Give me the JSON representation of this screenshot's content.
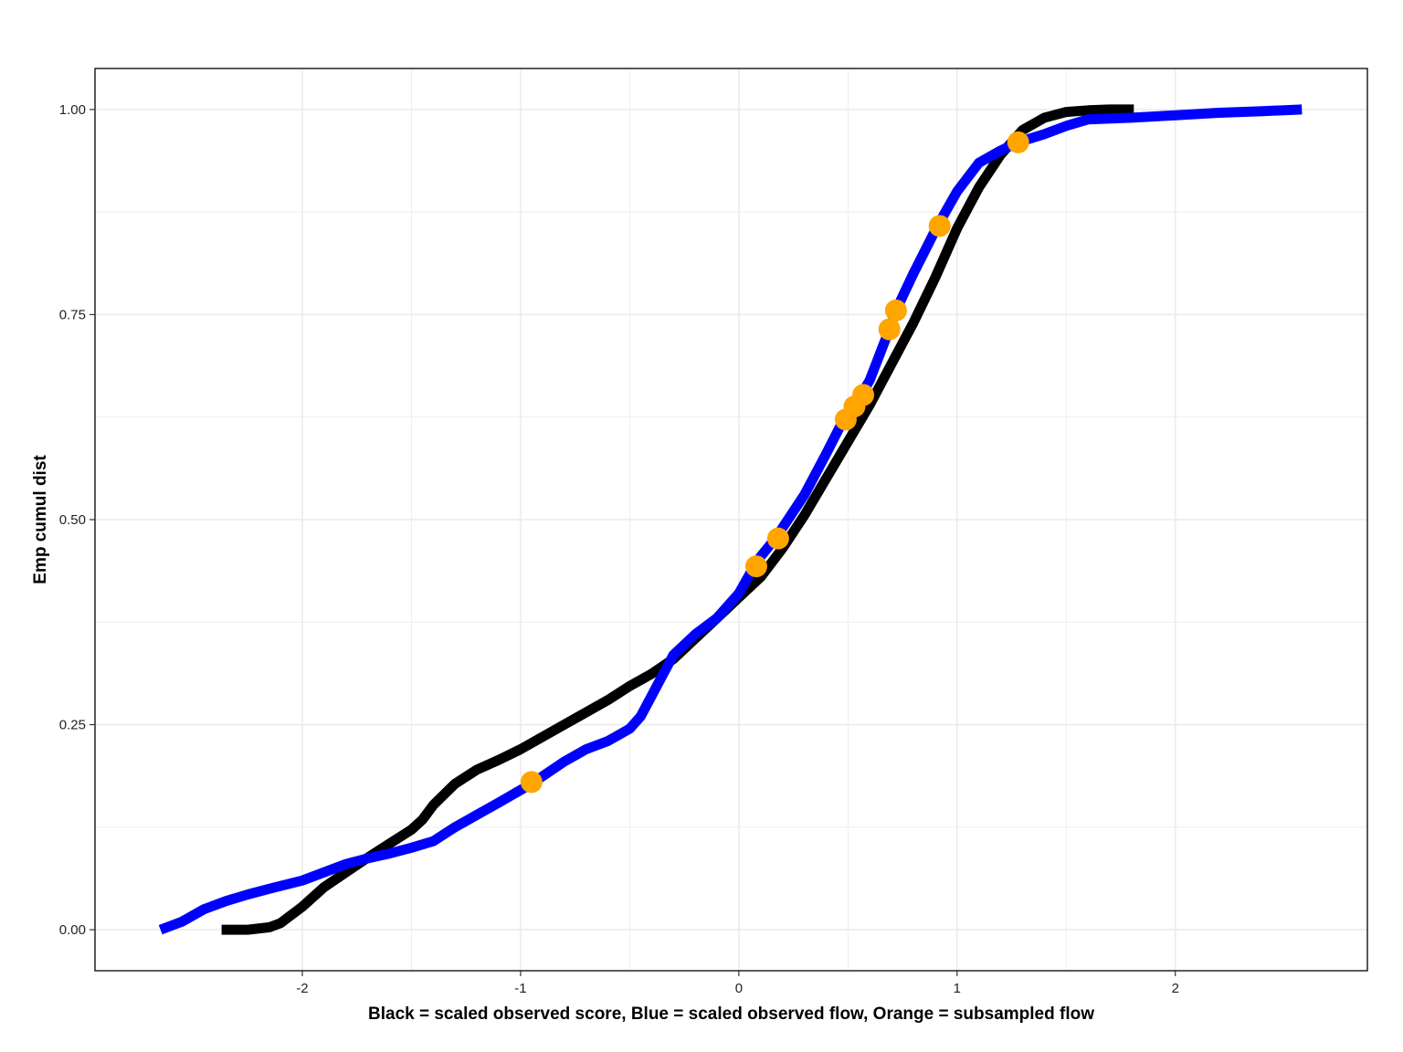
{
  "chart_data": {
    "type": "line",
    "xlabel": "Black = scaled observed score, Blue = scaled observed flow, Orange = subsampled flow",
    "ylabel": "Emp cumul dist",
    "xlim": [
      -2.95,
      2.88
    ],
    "ylim": [
      -0.05,
      1.05
    ],
    "x_ticks": [
      -2,
      -1,
      0,
      1,
      2
    ],
    "x_tick_labels": [
      "-2",
      "-1",
      "0",
      "1",
      "2"
    ],
    "y_ticks": [
      0,
      0.25,
      0.5,
      0.75,
      1.0
    ],
    "y_tick_labels": [
      "0.00",
      "0.25",
      "0.50",
      "0.75",
      "1.00"
    ],
    "grid": true,
    "legend": "none",
    "colors": {
      "score": "#000000",
      "flow": "#0000ff",
      "subsample": "#ffa500",
      "grid": "#ebebeb",
      "panel_border": "#000000"
    },
    "series": [
      {
        "kind": "line",
        "color": "#000000",
        "x": [
          -2.37,
          -2.25,
          -2.15,
          -2.1,
          -2.0,
          -1.9,
          -1.8,
          -1.7,
          -1.6,
          -1.5,
          -1.45,
          -1.4,
          -1.3,
          -1.2,
          -1.1,
          -1.0,
          -0.9,
          -0.8,
          -0.7,
          -0.6,
          -0.5,
          -0.4,
          -0.3,
          -0.2,
          -0.1,
          0.0,
          0.1,
          0.2,
          0.3,
          0.4,
          0.5,
          0.6,
          0.7,
          0.8,
          0.9,
          1.0,
          1.05,
          1.1,
          1.2,
          1.3,
          1.4,
          1.5,
          1.6,
          1.7,
          1.81
        ],
        "y": [
          0.0,
          0.0,
          0.003,
          0.008,
          0.028,
          0.052,
          0.07,
          0.088,
          0.105,
          0.122,
          0.134,
          0.152,
          0.178,
          0.195,
          0.207,
          0.22,
          0.235,
          0.25,
          0.265,
          0.28,
          0.297,
          0.312,
          0.33,
          0.355,
          0.38,
          0.405,
          0.43,
          0.465,
          0.505,
          0.55,
          0.595,
          0.64,
          0.69,
          0.74,
          0.795,
          0.855,
          0.88,
          0.905,
          0.945,
          0.975,
          0.99,
          0.997,
          0.999,
          1.0,
          1.0
        ]
      },
      {
        "kind": "line",
        "color": "#0000ff",
        "x": [
          -2.65,
          -2.55,
          -2.45,
          -2.35,
          -2.25,
          -2.15,
          -2.0,
          -1.9,
          -1.8,
          -1.7,
          -1.6,
          -1.5,
          -1.4,
          -1.3,
          -1.2,
          -1.1,
          -0.95,
          -0.8,
          -0.7,
          -0.6,
          -0.5,
          -0.45,
          -0.4,
          -0.35,
          -0.3,
          -0.2,
          -0.1,
          0.0,
          0.07,
          0.1,
          0.17,
          0.3,
          0.4,
          0.48,
          0.52,
          0.56,
          0.6,
          0.69,
          0.72,
          0.8,
          0.91,
          1.0,
          1.1,
          1.2,
          1.28,
          1.4,
          1.5,
          1.6,
          1.8,
          2.0,
          2.2,
          2.4,
          2.58
        ],
        "y": [
          0.0,
          0.01,
          0.025,
          0.035,
          0.043,
          0.05,
          0.06,
          0.07,
          0.08,
          0.087,
          0.093,
          0.1,
          0.108,
          0.125,
          0.14,
          0.155,
          0.178,
          0.205,
          0.22,
          0.23,
          0.245,
          0.26,
          0.285,
          0.31,
          0.335,
          0.36,
          0.38,
          0.41,
          0.443,
          0.455,
          0.478,
          0.53,
          0.58,
          0.622,
          0.638,
          0.652,
          0.67,
          0.732,
          0.755,
          0.8,
          0.858,
          0.9,
          0.935,
          0.95,
          0.96,
          0.97,
          0.98,
          0.988,
          0.99,
          0.993,
          0.996,
          0.998,
          1.0
        ]
      },
      {
        "kind": "scatter",
        "color": "#ffa500",
        "x": [
          -0.95,
          0.08,
          0.18,
          0.49,
          0.53,
          0.57,
          0.69,
          0.72,
          0.92,
          1.28
        ],
        "y": [
          0.18,
          0.443,
          0.477,
          0.622,
          0.638,
          0.652,
          0.732,
          0.755,
          0.858,
          0.96
        ]
      }
    ]
  }
}
